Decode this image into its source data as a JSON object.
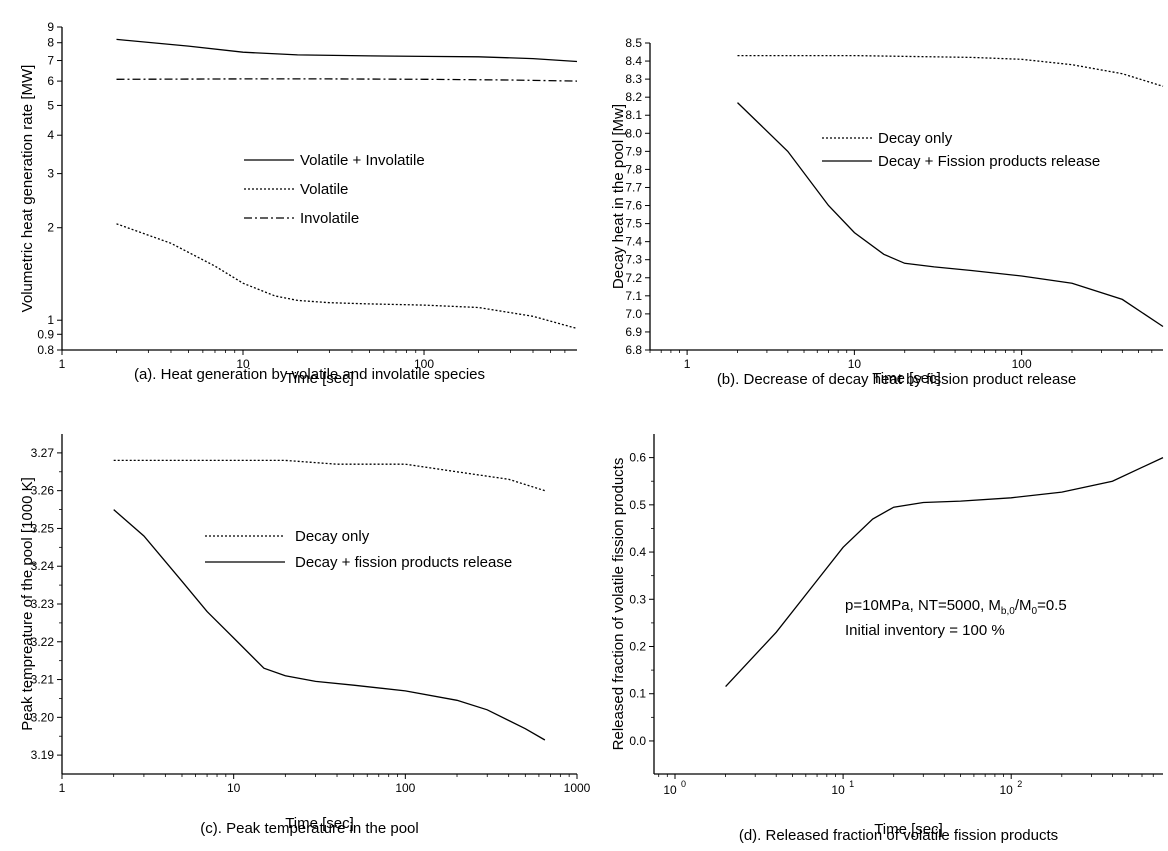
{
  "chart_data": [
    {
      "id": "a",
      "type": "line",
      "xscale": "log",
      "yscale": "log",
      "xlim": [
        1,
        700
      ],
      "ylim": [
        0.8,
        9
      ],
      "xticks": [
        {
          "v": 1,
          "t": "1"
        },
        {
          "v": 10,
          "t": "10"
        },
        {
          "v": 100,
          "t": "100"
        }
      ],
      "yticks": [
        {
          "v": 0.8,
          "t": "0.8"
        },
        {
          "v": 0.9,
          "t": "0.9"
        },
        {
          "v": 1,
          "t": "1"
        },
        {
          "v": 2,
          "t": "2"
        },
        {
          "v": 3,
          "t": "3"
        },
        {
          "v": 4,
          "t": "4"
        },
        {
          "v": 5,
          "t": "5"
        },
        {
          "v": 6,
          "t": "6"
        },
        {
          "v": 7,
          "t": "7"
        },
        {
          "v": 8,
          "t": "8"
        },
        {
          "v": 9,
          "t": "9"
        }
      ],
      "xlabel": "Time [sec]",
      "ylabel": "Volumetric heat generation rate  [MW]",
      "caption": "(a). Heat generation by volatile and involatile species",
      "legend_position": "center",
      "series": [
        {
          "name": "Volatile + Involatile",
          "style": "solid",
          "x": [
            2,
            5,
            10,
            20,
            50,
            100,
            200,
            400,
            700
          ],
          "y": [
            8.2,
            7.8,
            7.45,
            7.3,
            7.25,
            7.22,
            7.2,
            7.1,
            6.95
          ]
        },
        {
          "name": "Volatile",
          "style": "dotted",
          "x": [
            2,
            4,
            7,
            10,
            15,
            20,
            30,
            50,
            100,
            200,
            400,
            700
          ],
          "y": [
            2.06,
            1.78,
            1.5,
            1.32,
            1.2,
            1.16,
            1.14,
            1.13,
            1.12,
            1.1,
            1.03,
            0.94
          ]
        },
        {
          "name": "Involatile",
          "style": "dashdot",
          "x": [
            2,
            10,
            30,
            100,
            300,
            700
          ],
          "y": [
            6.08,
            6.1,
            6.1,
            6.08,
            6.05,
            6.0
          ]
        }
      ]
    },
    {
      "id": "b",
      "type": "line",
      "xscale": "log",
      "yscale": "linear",
      "xlim": [
        0.6,
        700
      ],
      "ylim": [
        6.8,
        8.5
      ],
      "xticks": [
        {
          "v": 1,
          "t": "1"
        },
        {
          "v": 10,
          "t": "10"
        },
        {
          "v": 100,
          "t": "100"
        }
      ],
      "yticks": [
        {
          "v": 6.8,
          "t": "6.8"
        },
        {
          "v": 6.9,
          "t": "6.9"
        },
        {
          "v": 7.0,
          "t": "7.0"
        },
        {
          "v": 7.1,
          "t": "7.1"
        },
        {
          "v": 7.2,
          "t": "7.2"
        },
        {
          "v": 7.3,
          "t": "7.3"
        },
        {
          "v": 7.4,
          "t": "7.4"
        },
        {
          "v": 7.5,
          "t": "7.5"
        },
        {
          "v": 7.6,
          "t": "7.6"
        },
        {
          "v": 7.7,
          "t": "7.7"
        },
        {
          "v": 7.8,
          "t": "7.8"
        },
        {
          "v": 7.9,
          "t": "7.9"
        },
        {
          "v": 8.0,
          "t": "8.0"
        },
        {
          "v": 8.1,
          "t": "8.1"
        },
        {
          "v": 8.2,
          "t": "8.2"
        },
        {
          "v": 8.3,
          "t": "8.3"
        },
        {
          "v": 8.4,
          "t": "8.4"
        },
        {
          "v": 8.5,
          "t": "8.5"
        }
      ],
      "xlabel": "Time [sec]",
      "ylabel": "Decay heat in the pool  [Mw]",
      "caption": "(b). Decrease of decay heat by fission product release",
      "legend_position": "top-right",
      "series": [
        {
          "name": "Decay only",
          "style": "dotted",
          "x": [
            2,
            10,
            50,
            100,
            200,
            400,
            700
          ],
          "y": [
            8.43,
            8.43,
            8.42,
            8.41,
            8.38,
            8.33,
            8.26
          ]
        },
        {
          "name": "Decay + Fission products release",
          "style": "solid",
          "x": [
            2,
            4,
            7,
            10,
            15,
            20,
            30,
            50,
            100,
            200,
            400,
            700
          ],
          "y": [
            8.17,
            7.9,
            7.6,
            7.45,
            7.33,
            7.28,
            7.26,
            7.24,
            7.21,
            7.17,
            7.08,
            6.93
          ]
        }
      ]
    },
    {
      "id": "c",
      "type": "line",
      "xscale": "log",
      "yscale": "linear",
      "xlim": [
        1,
        1000
      ],
      "ylim": [
        3.185,
        3.275
      ],
      "xticks": [
        {
          "v": 1,
          "t": "1"
        },
        {
          "v": 10,
          "t": "10"
        },
        {
          "v": 100,
          "t": "100"
        },
        {
          "v": 1000,
          "t": "1000"
        }
      ],
      "yticks": [
        {
          "v": 3.19,
          "t": "3.19"
        },
        {
          "v": 3.2,
          "t": "3.20"
        },
        {
          "v": 3.21,
          "t": "3.21"
        },
        {
          "v": 3.22,
          "t": "3.22"
        },
        {
          "v": 3.23,
          "t": "3.23"
        },
        {
          "v": 3.24,
          "t": "3.24"
        },
        {
          "v": 3.25,
          "t": "3.25"
        },
        {
          "v": 3.26,
          "t": "3.26"
        },
        {
          "v": 3.27,
          "t": "3.27"
        }
      ],
      "xlabel": "Time [sec]",
      "ylabel": "Peak tempreature of the pool [1000 K]",
      "caption": "(c). Peak temperature in the pool",
      "legend_position": "center",
      "series": [
        {
          "name": "Decay only",
          "style": "dotted",
          "x": [
            2,
            10,
            20,
            40,
            100,
            200,
            400,
            650
          ],
          "y": [
            3.268,
            3.268,
            3.268,
            3.267,
            3.267,
            3.265,
            3.263,
            3.26
          ]
        },
        {
          "name": "Decay + fission products release",
          "style": "solid",
          "x": [
            2,
            3,
            5,
            7,
            10,
            15,
            20,
            30,
            50,
            100,
            200,
            300,
            500,
            650
          ],
          "y": [
            3.255,
            3.248,
            3.236,
            3.228,
            3.221,
            3.213,
            3.211,
            3.2095,
            3.2085,
            3.207,
            3.2045,
            3.202,
            3.197,
            3.194
          ]
        }
      ]
    },
    {
      "id": "d",
      "type": "line",
      "xscale": "log",
      "yscale": "linear",
      "xlim": [
        0.75,
        800
      ],
      "ylim": [
        -0.07,
        0.65
      ],
      "xticks": [
        {
          "v": 1,
          "base": "10",
          "exp": "0"
        },
        {
          "v": 10,
          "base": "10",
          "exp": "1"
        },
        {
          "v": 100,
          "base": "10",
          "exp": "2"
        }
      ],
      "yticks": [
        {
          "v": 0.0,
          "t": "0.0"
        },
        {
          "v": 0.1,
          "t": "0.1"
        },
        {
          "v": 0.2,
          "t": "0.2"
        },
        {
          "v": 0.3,
          "t": "0.3"
        },
        {
          "v": 0.4,
          "t": "0.4"
        },
        {
          "v": 0.5,
          "t": "0.5"
        },
        {
          "v": 0.6,
          "t": "0.6"
        }
      ],
      "xlabel": "Time [sec]",
      "ylabel": "Released fraction of volatile fission products",
      "caption": "(d). Released fraction of volatile fission products",
      "annotation_line1": {
        "a": "p=10MPa, NT=5000, M",
        "s1": "b,0",
        "b": "/M",
        "s2": "0",
        "c": "=0.5"
      },
      "annotation_line2": "Initial inventory = 100 %",
      "series": [
        {
          "name": "",
          "style": "solid",
          "x": [
            2,
            4,
            7,
            10,
            15,
            20,
            30,
            50,
            100,
            200,
            400,
            800
          ],
          "y": [
            0.115,
            0.23,
            0.34,
            0.41,
            0.47,
            0.495,
            0.505,
            0.508,
            0.515,
            0.527,
            0.55,
            0.6
          ]
        }
      ]
    }
  ]
}
